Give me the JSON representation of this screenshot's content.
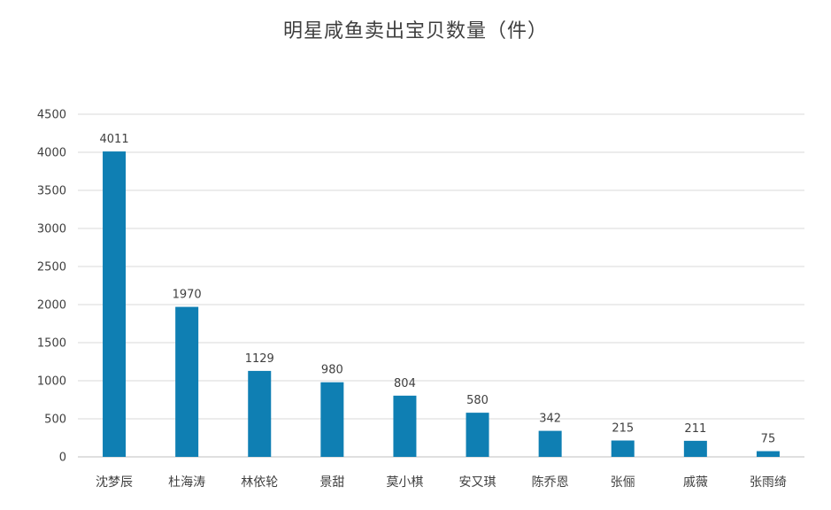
{
  "chart_data": {
    "type": "bar",
    "title": "明星咸鱼卖出宝贝数量（件）",
    "categories": [
      "沈梦辰",
      "杜海涛",
      "林依轮",
      "景甜",
      "莫小棋",
      "安又琪",
      "陈乔恩",
      "张俪",
      "戚薇",
      "张雨绮"
    ],
    "values": [
      4011,
      1970,
      1129,
      980,
      804,
      580,
      342,
      215,
      211,
      75
    ],
    "ylim": [
      0,
      4500
    ],
    "yticks": [
      0,
      500,
      1000,
      1500,
      2000,
      2500,
      3000,
      3500,
      4000,
      4500
    ],
    "grid": true,
    "legend": "none",
    "bar_color": "#0f7fb3",
    "data_labels": true
  }
}
